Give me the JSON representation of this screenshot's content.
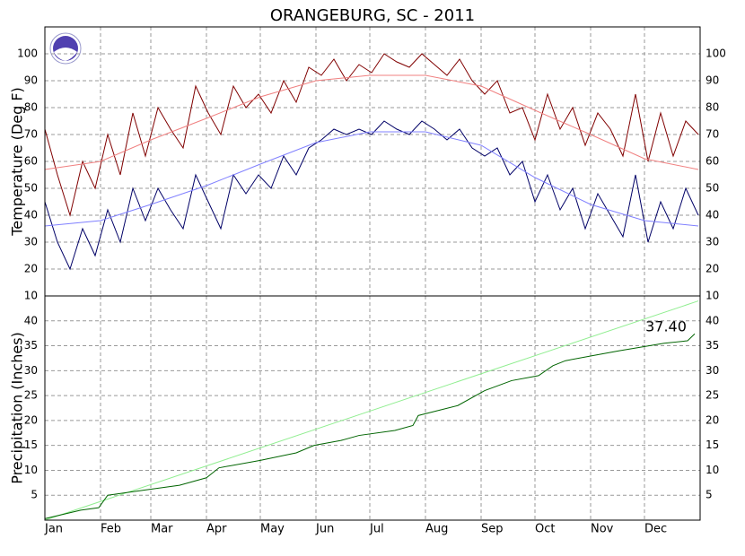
{
  "chart_data": [
    {
      "type": "line",
      "title": "ORANGEBURG, SC - 2011",
      "ylabel": "Temperature (Deg F)",
      "ylim": [
        10,
        110
      ],
      "yticks": [
        10,
        20,
        30,
        40,
        50,
        60,
        70,
        80,
        90,
        100
      ],
      "grid": true,
      "series": [
        {
          "color": "#800000",
          "x": [
            0,
            7,
            14,
            21,
            28,
            35,
            42,
            49,
            56,
            63,
            70,
            77,
            84,
            91,
            98,
            105,
            112,
            119,
            126,
            133,
            140,
            147,
            154,
            161,
            168,
            175,
            182,
            189,
            196,
            203,
            210,
            217,
            224,
            231,
            238,
            245,
            252,
            259,
            266,
            273,
            280,
            287,
            294,
            301,
            308,
            315,
            322,
            329,
            336,
            343,
            350,
            357,
            364
          ],
          "values": [
            72,
            55,
            40,
            60,
            50,
            70,
            55,
            78,
            62,
            80,
            72,
            65,
            88,
            78,
            70,
            88,
            80,
            85,
            78,
            90,
            82,
            95,
            92,
            98,
            90,
            96,
            93,
            100,
            97,
            95,
            100,
            96,
            92,
            98,
            90,
            85,
            90,
            78,
            80,
            68,
            85,
            72,
            80,
            66,
            78,
            72,
            62,
            85,
            60,
            78,
            62,
            75,
            70
          ]
        },
        {
          "color": "#000066",
          "x": [
            0,
            7,
            14,
            21,
            28,
            35,
            42,
            49,
            56,
            63,
            70,
            77,
            84,
            91,
            98,
            105,
            112,
            119,
            126,
            133,
            140,
            147,
            154,
            161,
            168,
            175,
            182,
            189,
            196,
            203,
            210,
            217,
            224,
            231,
            238,
            245,
            252,
            259,
            266,
            273,
            280,
            287,
            294,
            301,
            308,
            315,
            322,
            329,
            336,
            343,
            350,
            357,
            364
          ],
          "values": [
            45,
            30,
            20,
            35,
            25,
            42,
            30,
            50,
            38,
            50,
            42,
            35,
            55,
            45,
            35,
            55,
            48,
            55,
            50,
            62,
            55,
            65,
            68,
            72,
            70,
            72,
            70,
            75,
            72,
            70,
            75,
            72,
            68,
            72,
            65,
            62,
            65,
            55,
            60,
            45,
            55,
            42,
            50,
            35,
            48,
            40,
            32,
            55,
            30,
            45,
            35,
            50,
            40
          ]
        },
        {
          "color": "#f08080",
          "x": [
            0,
            31,
            59,
            90,
            120,
            151,
            181,
            212,
            243,
            273,
            304,
            334,
            364
          ],
          "values": [
            57,
            60,
            68,
            76,
            84,
            90,
            92,
            92,
            88,
            79,
            70,
            61,
            57
          ]
        },
        {
          "color": "#8080ff",
          "x": [
            0,
            31,
            59,
            90,
            120,
            151,
            181,
            212,
            243,
            273,
            304,
            334,
            364
          ],
          "values": [
            36,
            38,
            44,
            51,
            59,
            67,
            71,
            71,
            66,
            54,
            44,
            38,
            36
          ]
        }
      ]
    },
    {
      "type": "line",
      "ylabel": "Precipitation (Inches)",
      "annotation": "37.40",
      "ylim": [
        0,
        45
      ],
      "yticks": [
        5,
        10,
        15,
        20,
        25,
        30,
        35,
        40
      ],
      "grid": true,
      "xlim": [
        0,
        365
      ],
      "xticks": [
        {
          "value": 0,
          "label": "Jan"
        },
        {
          "value": 31,
          "label": "Feb"
        },
        {
          "value": 59,
          "label": "Mar"
        },
        {
          "value": 90,
          "label": "Apr"
        },
        {
          "value": 120,
          "label": "May"
        },
        {
          "value": 151,
          "label": "Jun"
        },
        {
          "value": 181,
          "label": "Jul"
        },
        {
          "value": 212,
          "label": "Aug"
        },
        {
          "value": 243,
          "label": "Sep"
        },
        {
          "value": 273,
          "label": "Oct"
        },
        {
          "value": 304,
          "label": "Nov"
        },
        {
          "value": 334,
          "label": "Dec"
        }
      ],
      "series": [
        {
          "color": "#90ee90",
          "x": [
            0,
            364
          ],
          "values": [
            0,
            44
          ]
        },
        {
          "color": "#006400",
          "x": [
            0,
            20,
            30,
            35,
            55,
            75,
            90,
            97,
            120,
            140,
            150,
            165,
            175,
            195,
            205,
            208,
            230,
            245,
            260,
            275,
            283,
            290,
            305,
            320,
            345,
            358,
            362
          ],
          "values": [
            0.3,
            2,
            2.5,
            5,
            6,
            7,
            8.5,
            10.5,
            12,
            13.5,
            15,
            16,
            17,
            18,
            19,
            21,
            23,
            26,
            28,
            29,
            31,
            32,
            33,
            34,
            35.5,
            36,
            37.4
          ]
        }
      ]
    }
  ]
}
